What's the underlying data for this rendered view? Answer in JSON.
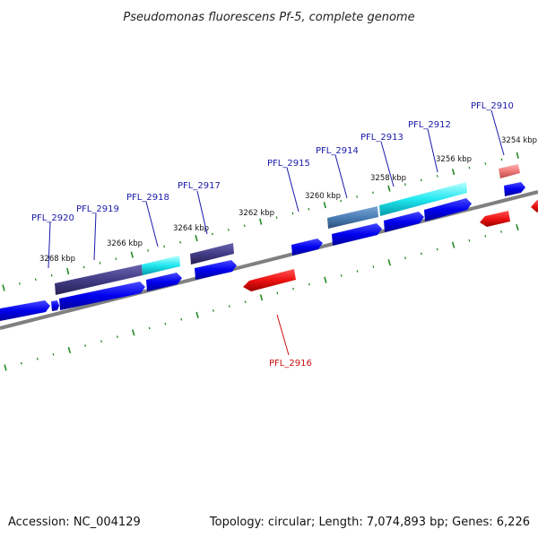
{
  "title": "Pseudomonas fluorescens Pf-5, complete genome",
  "footer": {
    "accession": "Accession: NC_004129",
    "summary": "Topology: circular; Length: 7,074,893 bp; Genes: 6,226"
  },
  "colors": {
    "backbone": "#808080",
    "ticks": "#228b22",
    "forward_cds": "#0000ee",
    "reverse_cds": "#ee1111",
    "forward_label": "#1a1aaa",
    "reverse_label": "#cc1111"
  },
  "scale_labels": [
    "3268 kbp",
    "3266 kbp",
    "3264 kbp",
    "3262 kbp",
    "3260 kbp",
    "3258 kbp",
    "3256 kbp",
    "3254 kbp"
  ],
  "gene_labels": [
    {
      "text": "PFL_2920",
      "strand": "forward"
    },
    {
      "text": "PFL_2919",
      "strand": "forward"
    },
    {
      "text": "PFL_2918",
      "strand": "forward"
    },
    {
      "text": "PFL_2917",
      "strand": "forward"
    },
    {
      "text": "PFL_2915",
      "strand": "forward"
    },
    {
      "text": "PFL_2914",
      "strand": "forward"
    },
    {
      "text": "PFL_2913",
      "strand": "forward"
    },
    {
      "text": "PFL_2912",
      "strand": "forward"
    },
    {
      "text": "PFL_2910",
      "strand": "forward"
    },
    {
      "text": "PFL_2916",
      "strand": "reverse"
    }
  ]
}
